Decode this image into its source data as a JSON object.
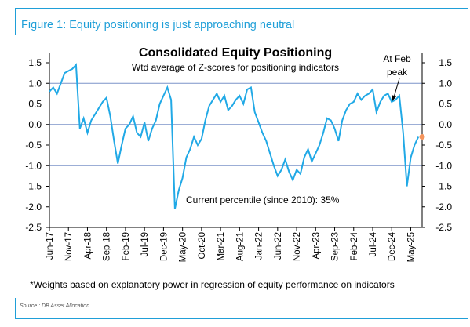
{
  "figure_title": "Figure 1: Equity positioning is just approaching neutral",
  "source": "Source : DB Asset Allocation",
  "chart_data": {
    "type": "line",
    "title": "Consolidated Equity Positioning",
    "subtitle": "Wtd average of Z-scores for positioning indicators",
    "ylim": [
      -2.5,
      1.5
    ],
    "yticks": [
      "1.5",
      "1.0",
      "0.5",
      "0.0",
      "-0.5",
      "-1.0",
      "-1.5",
      "-2.0",
      "-2.5"
    ],
    "xticks": [
      "Jun-17",
      "Nov-17",
      "Apr-18",
      "Sep-18",
      "Feb-19",
      "Jul-19",
      "Dec-19",
      "May-20",
      "Oct-20",
      "Mar-21",
      "Aug-21",
      "Jan-22",
      "Jun-22",
      "Nov-22",
      "Apr-23",
      "Sep-23",
      "Feb-24",
      "Jul-24",
      "Dec-24",
      "May-25"
    ],
    "reference_lines": [
      1.0,
      0.0,
      -1.0
    ],
    "colors": {
      "line": "#21a9e6",
      "reference": "#7b93c9",
      "marker": "#f4945c"
    },
    "annotations": {
      "feb_peak": [
        "At Feb",
        "peak"
      ],
      "percentile": "Current percentile (since 2010): 35%"
    },
    "footnote": "*Weights based on explanatory power in regression of equity performance on indicators",
    "latest_marker": {
      "x": "Jul-25",
      "y": -0.3
    },
    "series": [
      {
        "points": [
          [
            "2017-06",
            0.8
          ],
          [
            "2017-07",
            0.9
          ],
          [
            "2017-08",
            0.75
          ],
          [
            "2017-09",
            1.0
          ],
          [
            "2017-10",
            1.25
          ],
          [
            "2017-11",
            1.3
          ],
          [
            "2017-12",
            1.35
          ],
          [
            "2018-01",
            1.45
          ],
          [
            "2018-02",
            -0.1
          ],
          [
            "2018-03",
            0.15
          ],
          [
            "2018-04",
            -0.2
          ],
          [
            "2018-05",
            0.1
          ],
          [
            "2018-06",
            0.25
          ],
          [
            "2018-07",
            0.4
          ],
          [
            "2018-08",
            0.55
          ],
          [
            "2018-09",
            0.65
          ],
          [
            "2018-10",
            0.2
          ],
          [
            "2018-11",
            -0.4
          ],
          [
            "2018-12",
            -0.95
          ],
          [
            "2019-01",
            -0.5
          ],
          [
            "2019-02",
            -0.1
          ],
          [
            "2019-03",
            0.0
          ],
          [
            "2019-04",
            0.2
          ],
          [
            "2019-05",
            -0.2
          ],
          [
            "2019-06",
            -0.3
          ],
          [
            "2019-07",
            0.05
          ],
          [
            "2019-08",
            -0.4
          ],
          [
            "2019-09",
            -0.1
          ],
          [
            "2019-10",
            0.1
          ],
          [
            "2019-11",
            0.5
          ],
          [
            "2019-12",
            0.7
          ],
          [
            "2020-01",
            0.9
          ],
          [
            "2020-02",
            0.6
          ],
          [
            "2020-03",
            -2.05
          ],
          [
            "2020-04",
            -1.6
          ],
          [
            "2020-05",
            -1.3
          ],
          [
            "2020-06",
            -0.8
          ],
          [
            "2020-07",
            -0.6
          ],
          [
            "2020-08",
            -0.3
          ],
          [
            "2020-09",
            -0.5
          ],
          [
            "2020-10",
            -0.35
          ],
          [
            "2020-11",
            0.1
          ],
          [
            "2020-12",
            0.45
          ],
          [
            "2021-01",
            0.6
          ],
          [
            "2021-02",
            0.75
          ],
          [
            "2021-03",
            0.55
          ],
          [
            "2021-04",
            0.7
          ],
          [
            "2021-05",
            0.35
          ],
          [
            "2021-06",
            0.45
          ],
          [
            "2021-07",
            0.6
          ],
          [
            "2021-08",
            0.7
          ],
          [
            "2021-09",
            0.5
          ],
          [
            "2021-10",
            0.85
          ],
          [
            "2021-11",
            0.9
          ],
          [
            "2021-12",
            0.3
          ],
          [
            "2022-01",
            0.05
          ],
          [
            "2022-02",
            -0.2
          ],
          [
            "2022-03",
            -0.4
          ],
          [
            "2022-04",
            -0.7
          ],
          [
            "2022-05",
            -1.0
          ],
          [
            "2022-06",
            -1.25
          ],
          [
            "2022-07",
            -1.1
          ],
          [
            "2022-08",
            -0.85
          ],
          [
            "2022-09",
            -1.15
          ],
          [
            "2022-10",
            -1.35
          ],
          [
            "2022-11",
            -1.1
          ],
          [
            "2022-12",
            -1.2
          ],
          [
            "2023-01",
            -0.8
          ],
          [
            "2023-02",
            -0.6
          ],
          [
            "2023-03",
            -0.9
          ],
          [
            "2023-04",
            -0.7
          ],
          [
            "2023-05",
            -0.5
          ],
          [
            "2023-06",
            -0.2
          ],
          [
            "2023-07",
            0.15
          ],
          [
            "2023-08",
            0.1
          ],
          [
            "2023-09",
            -0.1
          ],
          [
            "2023-10",
            -0.4
          ],
          [
            "2023-11",
            0.1
          ],
          [
            "2023-12",
            0.35
          ],
          [
            "2024-01",
            0.5
          ],
          [
            "2024-02",
            0.55
          ],
          [
            "2024-03",
            0.75
          ],
          [
            "2024-04",
            0.6
          ],
          [
            "2024-05",
            0.7
          ],
          [
            "2024-06",
            0.75
          ],
          [
            "2024-07",
            0.85
          ],
          [
            "2024-08",
            0.3
          ],
          [
            "2024-09",
            0.55
          ],
          [
            "2024-10",
            0.7
          ],
          [
            "2024-11",
            0.75
          ],
          [
            "2024-12",
            0.55
          ],
          [
            "2025-01",
            0.6
          ],
          [
            "2025-02",
            0.7
          ],
          [
            "2025-03",
            -0.2
          ],
          [
            "2025-04",
            -1.5
          ],
          [
            "2025-05",
            -0.8
          ],
          [
            "2025-06",
            -0.5
          ],
          [
            "2025-07",
            -0.3
          ]
        ]
      }
    ]
  }
}
